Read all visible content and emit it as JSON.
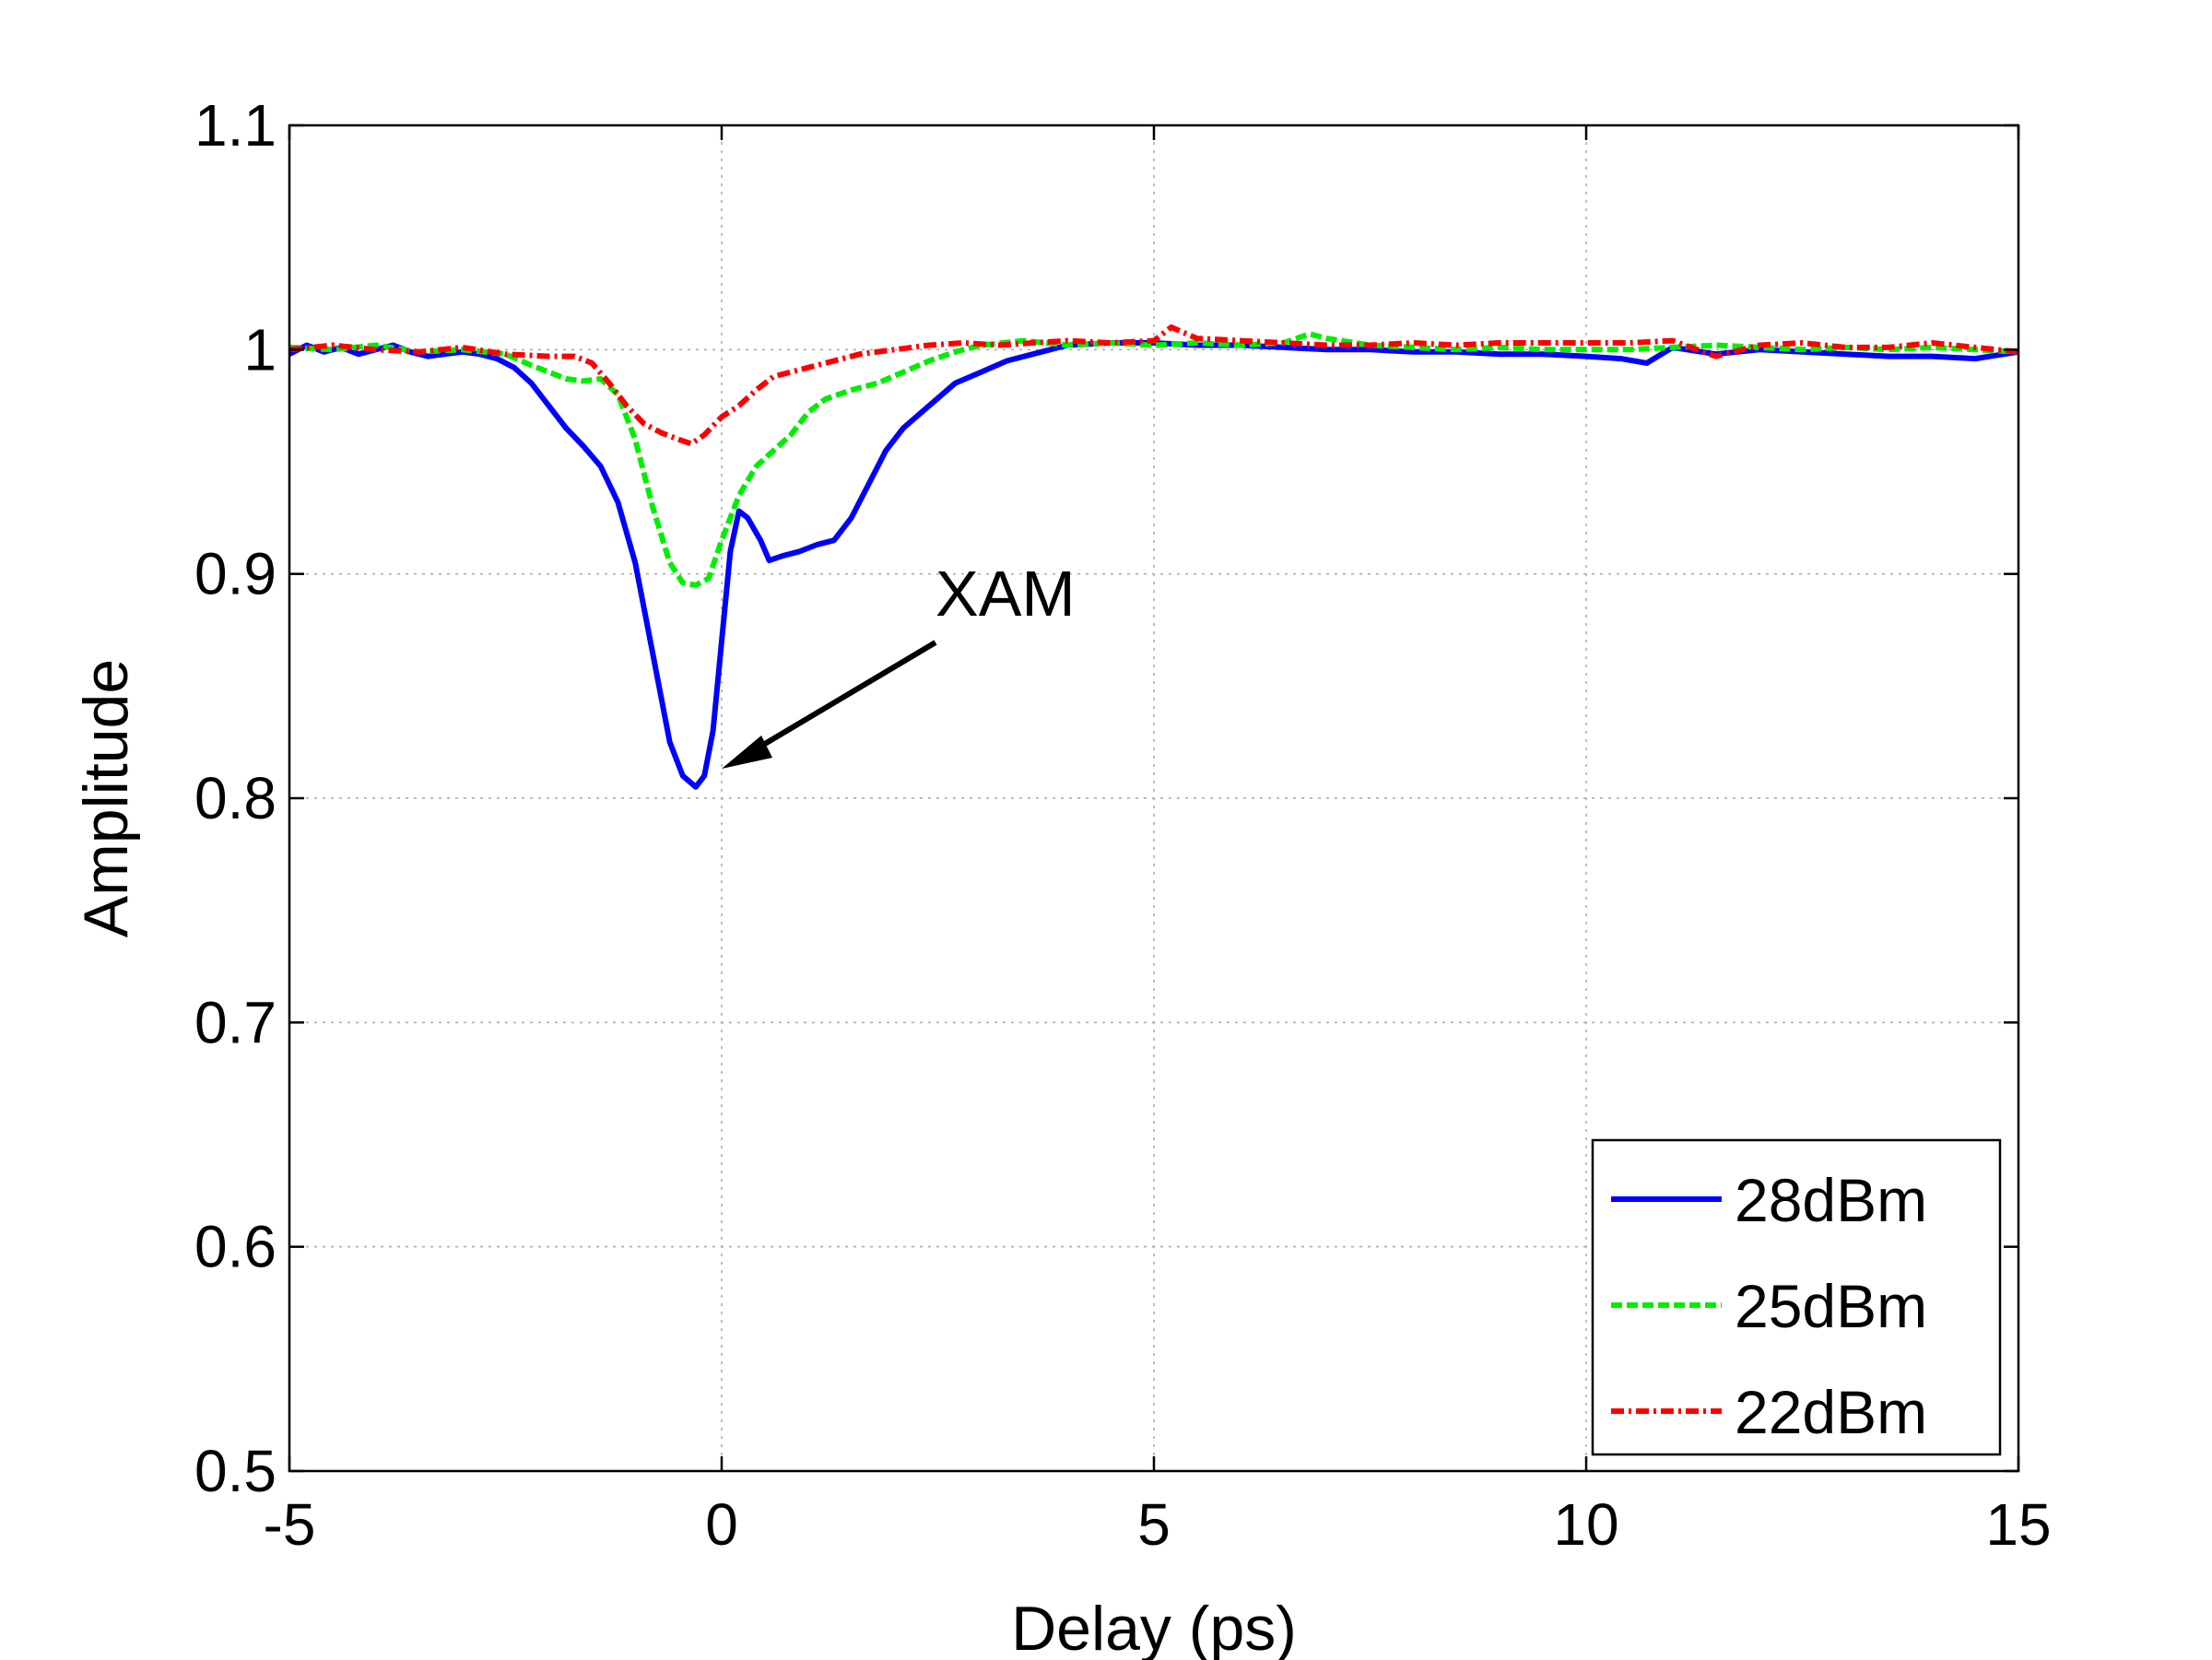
{
  "chart_data": {
    "type": "line",
    "title": "",
    "xlabel": "Delay (ps)",
    "ylabel": "Amplitude",
    "xlim": [
      -5,
      15
    ],
    "ylim": [
      0.5,
      1.1
    ],
    "xticks": [
      "-5",
      "0",
      "5",
      "10",
      "15"
    ],
    "yticks": [
      "0.5",
      "0.6",
      "0.7",
      "0.8",
      "0.9",
      "1",
      "1.1"
    ],
    "grid": true,
    "legend_position": "bottom-right",
    "annotation": {
      "text": "XAM",
      "points_to": {
        "x": -0.15,
        "y": 0.81
      }
    },
    "series": [
      {
        "name": "28dBm",
        "color": "#0000ff",
        "style": "solid",
        "x": [
          -5.0,
          -4.8,
          -4.6,
          -4.4,
          -4.2,
          -4.0,
          -3.8,
          -3.6,
          -3.4,
          -3.2,
          -3.0,
          -2.8,
          -2.6,
          -2.4,
          -2.2,
          -2.0,
          -1.8,
          -1.6,
          -1.4,
          -1.2,
          -1.0,
          -0.8,
          -0.6,
          -0.45,
          -0.3,
          -0.2,
          -0.1,
          0.0,
          0.1,
          0.2,
          0.3,
          0.45,
          0.55,
          0.7,
          0.9,
          1.1,
          1.3,
          1.5,
          1.7,
          1.9,
          2.1,
          2.4,
          2.7,
          3.0,
          3.3,
          3.6,
          4.0,
          4.5,
          5.0,
          5.5,
          6.0,
          6.5,
          7.0,
          7.5,
          8.0,
          8.5,
          9.0,
          9.5,
          10.0,
          10.4,
          10.7,
          11.0,
          11.5,
          12.0,
          12.5,
          13.0,
          13.5,
          14.0,
          14.5,
          15.0
        ],
        "values": [
          0.998,
          1.002,
          0.999,
          1.001,
          0.998,
          1.0,
          1.002,
          0.999,
          0.997,
          0.998,
          0.999,
          0.998,
          0.996,
          0.992,
          0.985,
          0.975,
          0.965,
          0.957,
          0.948,
          0.932,
          0.905,
          0.865,
          0.825,
          0.81,
          0.805,
          0.81,
          0.83,
          0.87,
          0.91,
          0.928,
          0.925,
          0.915,
          0.906,
          0.908,
          0.91,
          0.913,
          0.915,
          0.925,
          0.94,
          0.955,
          0.965,
          0.975,
          0.985,
          0.99,
          0.995,
          0.998,
          1.002,
          1.003,
          1.003,
          1.002,
          1.002,
          1.001,
          1.0,
          1.0,
          0.999,
          0.999,
          0.998,
          0.998,
          0.997,
          0.996,
          0.994,
          1.001,
          0.998,
          1.0,
          0.999,
          0.998,
          0.997,
          0.997,
          0.996,
          0.999
        ]
      },
      {
        "name": "25dBm",
        "color": "#00ee00",
        "style": "dashed",
        "x": [
          -5.0,
          -4.5,
          -4.0,
          -3.5,
          -3.0,
          -2.5,
          -2.2,
          -2.0,
          -1.8,
          -1.6,
          -1.4,
          -1.2,
          -1.0,
          -0.8,
          -0.6,
          -0.45,
          -0.3,
          -0.15,
          0.0,
          0.2,
          0.4,
          0.6,
          0.8,
          1.0,
          1.2,
          1.5,
          1.8,
          2.1,
          2.4,
          2.7,
          3.0,
          3.5,
          4.0,
          4.5,
          5.0,
          5.5,
          6.0,
          6.5,
          6.8,
          7.0,
          7.5,
          8.0,
          8.5,
          9.0,
          9.5,
          10.0,
          10.5,
          11.0,
          11.5,
          12.0,
          12.5,
          13.0,
          13.5,
          14.0,
          14.5,
          15.0
        ],
        "values": [
          1.001,
          1.0,
          1.002,
          0.999,
          1.0,
          0.998,
          0.993,
          0.99,
          0.987,
          0.986,
          0.987,
          0.98,
          0.96,
          0.93,
          0.905,
          0.896,
          0.895,
          0.898,
          0.915,
          0.935,
          0.948,
          0.955,
          0.962,
          0.972,
          0.978,
          0.982,
          0.985,
          0.99,
          0.995,
          0.999,
          1.002,
          1.004,
          1.002,
          1.003,
          1.002,
          1.003,
          1.002,
          1.003,
          1.007,
          1.005,
          1.002,
          1.001,
          1.0,
          1.001,
          1.0,
          1.0,
          1.0,
          1.001,
          1.002,
          1.001,
          1.0,
          1.001,
          1.0,
          1.001,
          1.0,
          0.999
        ]
      },
      {
        "name": "22dBm",
        "color": "#ff0000",
        "style": "dashdot",
        "x": [
          -5.0,
          -4.5,
          -4.0,
          -3.5,
          -3.0,
          -2.5,
          -2.0,
          -1.7,
          -1.5,
          -1.3,
          -1.1,
          -0.9,
          -0.7,
          -0.5,
          -0.35,
          -0.2,
          0.0,
          0.2,
          0.4,
          0.6,
          0.8,
          1.0,
          1.3,
          1.6,
          2.0,
          2.4,
          2.8,
          3.2,
          3.6,
          4.0,
          4.5,
          5.0,
          5.2,
          5.5,
          6.0,
          6.5,
          7.0,
          7.5,
          8.0,
          8.5,
          9.0,
          9.5,
          10.0,
          10.5,
          11.0,
          11.5,
          12.0,
          12.5,
          13.0,
          13.5,
          14.0,
          14.5,
          15.0
        ],
        "values": [
          1.0,
          1.002,
          1.0,
          0.999,
          1.001,
          0.998,
          0.997,
          0.997,
          0.994,
          0.985,
          0.975,
          0.967,
          0.963,
          0.96,
          0.958,
          0.962,
          0.97,
          0.975,
          0.982,
          0.988,
          0.99,
          0.992,
          0.995,
          0.998,
          1.0,
          1.002,
          1.003,
          1.002,
          1.003,
          1.004,
          1.003,
          1.004,
          1.01,
          1.005,
          1.004,
          1.003,
          1.002,
          1.002,
          1.003,
          1.002,
          1.003,
          1.003,
          1.003,
          1.003,
          1.004,
          0.997,
          1.002,
          1.003,
          1.001,
          1.001,
          1.003,
          1.001,
          0.999
        ]
      }
    ]
  }
}
